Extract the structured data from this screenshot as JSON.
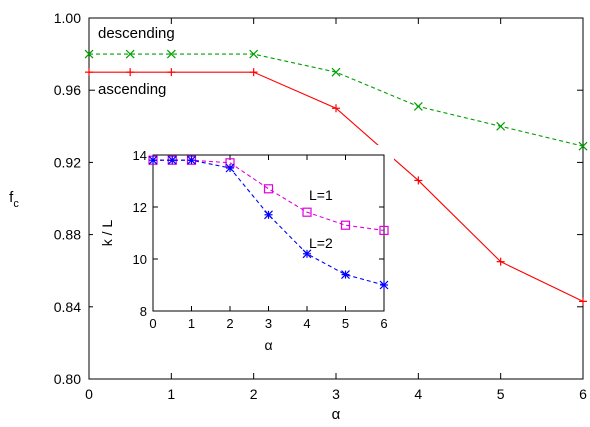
{
  "chart_data": [
    {
      "type": "line",
      "xlabel": "α",
      "ylabel": "f",
      "ylabel_subscript": "c",
      "xlim": [
        0,
        6
      ],
      "ylim": [
        0.8,
        1.0
      ],
      "xticks": [
        0,
        1,
        2,
        3,
        4,
        5,
        6
      ],
      "xtick_labels": [
        "0",
        "1",
        "2",
        "3",
        "4",
        "5",
        "6"
      ],
      "yticks": [
        0.8,
        0.84,
        0.88,
        0.92,
        0.96,
        1.0
      ],
      "ytick_labels": [
        "0.80",
        "0.84",
        "0.88",
        "0.92",
        "0.96",
        "1.00"
      ],
      "grid": false,
      "series": [
        {
          "name": "descending",
          "color": "#00a000",
          "line_style": "dashed",
          "marker": "x",
          "x": [
            0,
            0.5,
            1,
            2,
            3,
            4,
            5,
            6
          ],
          "y": [
            0.98,
            0.98,
            0.98,
            0.98,
            0.97,
            0.951,
            0.94,
            0.929
          ]
        },
        {
          "name": "ascending",
          "color": "#ff0000",
          "line_style": "solid",
          "marker": "+",
          "x": [
            0,
            0.5,
            1,
            2,
            3,
            4,
            5,
            6
          ],
          "y": [
            0.97,
            0.97,
            0.97,
            0.97,
            0.95,
            0.91,
            0.865,
            0.843
          ]
        }
      ]
    },
    {
      "type": "line",
      "inset": true,
      "xlabel": "α",
      "ylabel": "k / L",
      "xlim": [
        0,
        6
      ],
      "ylim": [
        8,
        14
      ],
      "xticks": [
        0,
        1,
        2,
        3,
        4,
        5,
        6
      ],
      "xtick_labels": [
        "0",
        "1",
        "2",
        "3",
        "4",
        "5",
        "6"
      ],
      "yticks": [
        8,
        10,
        12,
        14
      ],
      "ytick_labels": [
        "8",
        "10",
        "12",
        "14"
      ],
      "grid": false,
      "series": [
        {
          "name": "L=1",
          "color": "#e000e0",
          "line_style": "dashed",
          "marker": "square",
          "x": [
            0,
            0.5,
            1,
            2,
            3,
            4,
            5,
            6
          ],
          "y": [
            13.8,
            13.8,
            13.8,
            13.7,
            12.7,
            11.8,
            11.3,
            11.1
          ]
        },
        {
          "name": "L=2",
          "color": "#0000ff",
          "line_style": "dashed",
          "marker": "asterisk",
          "x": [
            0,
            0.5,
            1,
            2,
            3,
            4,
            5,
            6
          ],
          "y": [
            13.8,
            13.8,
            13.8,
            13.5,
            11.7,
            10.2,
            9.4,
            9.0
          ]
        }
      ]
    }
  ]
}
